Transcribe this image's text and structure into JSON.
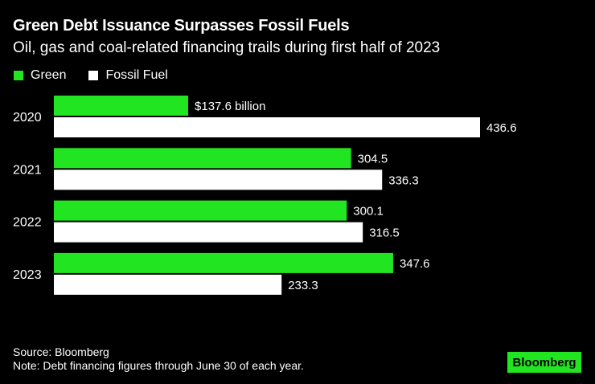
{
  "title": "Green Debt Issuance Surpasses Fossil Fuels",
  "subtitle": "Oil, gas and coal-related financing trails during first half of 2023",
  "colors": {
    "green": "#22e522",
    "fossil": "#ffffff",
    "background": "#000000"
  },
  "chart_data": {
    "type": "bar",
    "orientation": "horizontal",
    "categories": [
      "2020",
      "2021",
      "2022",
      "2023"
    ],
    "series": [
      {
        "name": "Green",
        "values": [
          137.6,
          304.5,
          300.1,
          347.6
        ],
        "labels": [
          "$137.6 billion",
          "304.5",
          "300.1",
          "347.6"
        ]
      },
      {
        "name": "Fossil Fuel",
        "values": [
          436.6,
          336.3,
          316.5,
          233.3
        ],
        "labels": [
          "436.6",
          "336.3",
          "316.5",
          "233.3"
        ]
      }
    ],
    "legend": "top-left",
    "grid": false
  },
  "footer": {
    "source": "Source: Bloomberg",
    "note": "Note: Debt financing figures through June 30 of each year."
  },
  "logo": "Bloomberg"
}
